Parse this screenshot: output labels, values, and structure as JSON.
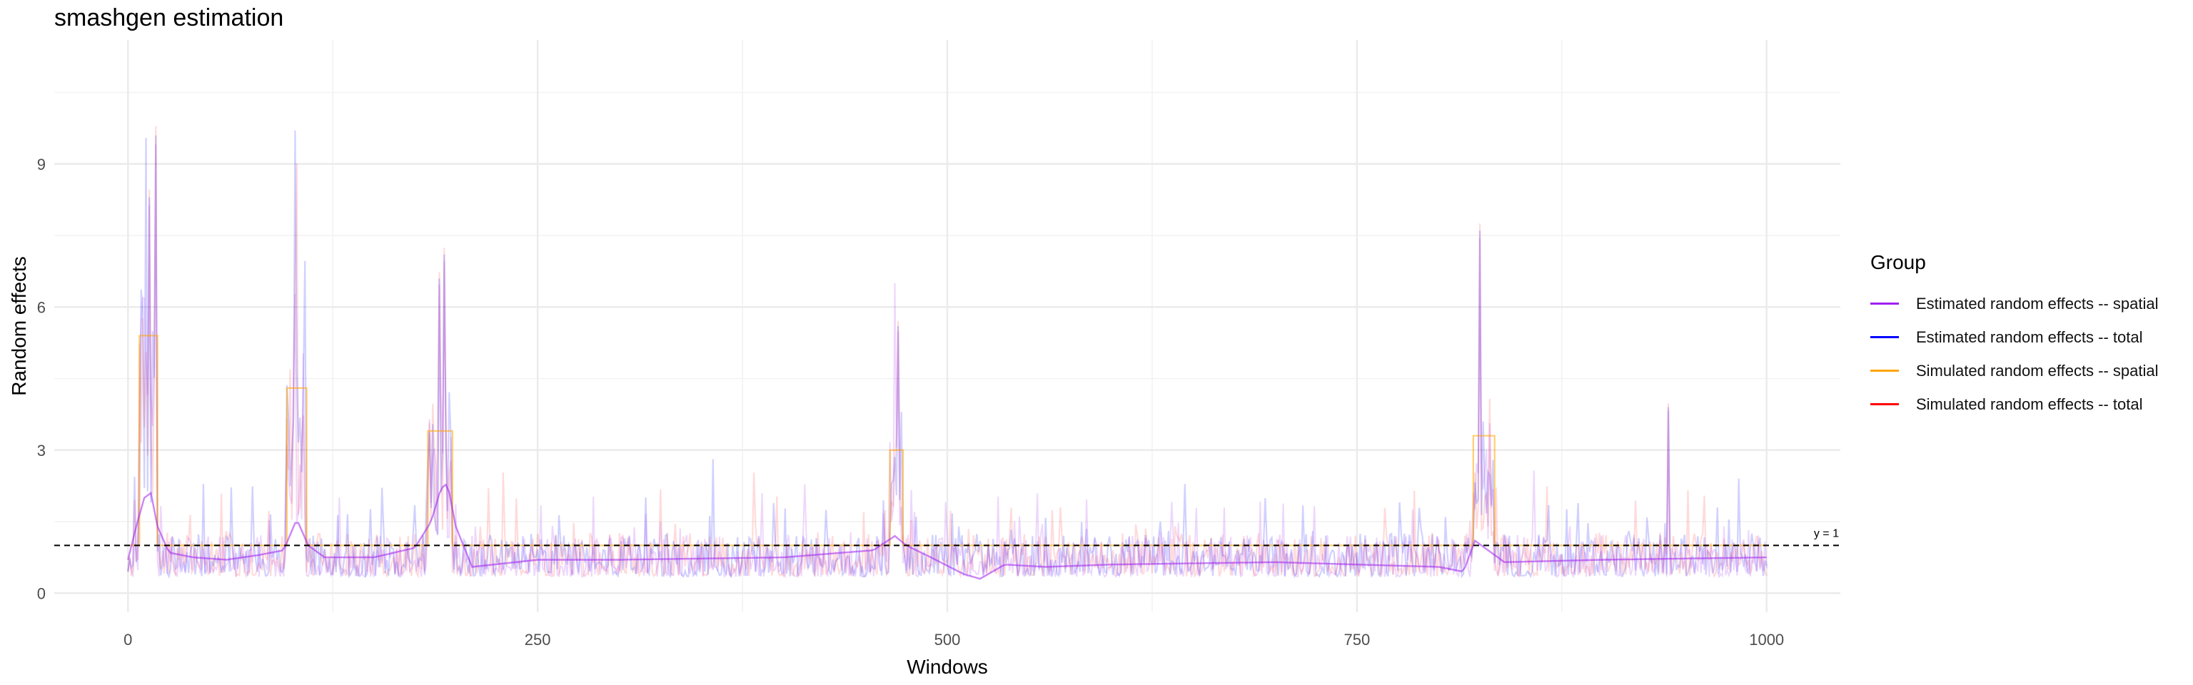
{
  "chart_data": {
    "type": "line",
    "title": "smashgen estimation",
    "xlabel": "Windows",
    "ylabel": "Random effects",
    "xlim": [
      -45,
      1045
    ],
    "ylim": [
      -0.4,
      11.6
    ],
    "x_ticks": [
      0,
      250,
      500,
      750,
      1000
    ],
    "y_ticks": [
      0,
      3,
      6,
      9
    ],
    "grid": true,
    "hline": {
      "y": 1,
      "label": "y = 1",
      "style": "dashed"
    },
    "legend": {
      "title": "Group",
      "placement": "right",
      "entries": [
        {
          "name": "Estimated random effects -- spatial",
          "color": "#a020f0"
        },
        {
          "name": "Estimated random effects -- total",
          "color": "#0000ff"
        },
        {
          "name": "Simulated random effects -- spatial",
          "color": "#ffa500"
        },
        {
          "name": "Simulated random effects -- total",
          "color": "#ff0000"
        }
      ]
    },
    "series": [
      {
        "name": "Simulated random effects -- spatial",
        "color": "#ffa500",
        "type": "step",
        "x": [
          0,
          7,
          7,
          18,
          18,
          97,
          97,
          109,
          109,
          183,
          183,
          198,
          198,
          465,
          465,
          473,
          473,
          821,
          821,
          834,
          834,
          1000
        ],
        "y": [
          1,
          1,
          5.4,
          5.4,
          1,
          1,
          4.3,
          4.3,
          1,
          1,
          3.4,
          3.4,
          1,
          1,
          3.0,
          3.0,
          1,
          1,
          3.3,
          3.3,
          1,
          1
        ]
      },
      {
        "name": "Estimated random effects -- spatial",
        "color": "#a020f0",
        "type": "smooth",
        "x": [
          0,
          5,
          10,
          14,
          18,
          25,
          40,
          60,
          80,
          95,
          103,
          110,
          120,
          150,
          175,
          185,
          191,
          195,
          200,
          210,
          250,
          300,
          400,
          455,
          468,
          475,
          490,
          510,
          520,
          535,
          560,
          600,
          700,
          800,
          815,
          822,
          830,
          840,
          900,
          1000
        ],
        "y": [
          0.7,
          1.4,
          2.0,
          2.1,
          1.4,
          0.85,
          0.75,
          0.7,
          0.8,
          0.9,
          1.55,
          1.0,
          0.75,
          0.75,
          0.95,
          1.5,
          2.2,
          2.3,
          1.4,
          0.55,
          0.7,
          0.7,
          0.75,
          0.9,
          1.2,
          1.0,
          0.75,
          0.4,
          0.3,
          0.6,
          0.55,
          0.6,
          0.65,
          0.55,
          0.45,
          1.1,
          0.9,
          0.65,
          0.7,
          0.75
        ]
      }
    ],
    "peaks": [
      {
        "x": 13,
        "y": 8.3
      },
      {
        "x": 17,
        "y": 9.6
      },
      {
        "x": 102,
        "y": 6.4
      },
      {
        "x": 190,
        "y": 6.6
      },
      {
        "x": 193,
        "y": 7.1
      },
      {
        "x": 470,
        "y": 5.6
      },
      {
        "x": 825,
        "y": 7.6
      },
      {
        "x": 940,
        "y": 3.9
      }
    ]
  }
}
